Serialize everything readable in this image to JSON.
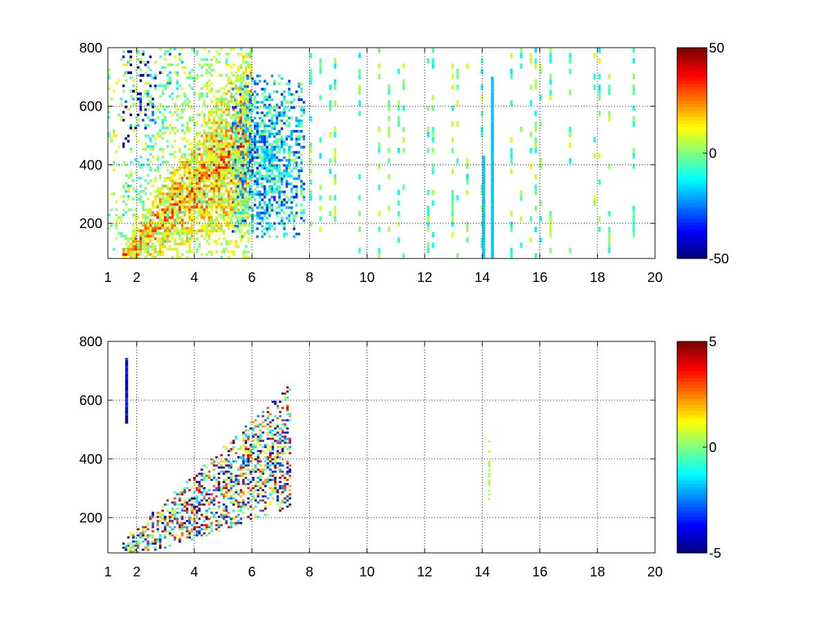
{
  "chart_data": [
    {
      "type": "heatmap",
      "title": "",
      "xlabel": "",
      "ylabel": "",
      "xlim": [
        1,
        20
      ],
      "ylim": [
        80,
        800
      ],
      "grid": true,
      "colormap": "jet",
      "xticks": [
        1,
        2,
        4,
        6,
        8,
        10,
        12,
        14,
        16,
        18,
        20
      ],
      "yticks": [
        200,
        400,
        600,
        800
      ],
      "colorbar": {
        "range": [
          -50,
          50
        ],
        "ticks": [
          -50,
          0,
          50
        ],
        "placement": "right"
      },
      "features": [
        {
          "kind": "diagonal-band",
          "description": "dense positive values rising from x≈1.5,y≈80 to x≈6,y≈650",
          "value_range": [
            0,
            40
          ]
        },
        {
          "kind": "cluster",
          "x_range": [
            5.3,
            7.8
          ],
          "y_range": [
            150,
            700
          ],
          "value_range": [
            -35,
            5
          ]
        },
        {
          "kind": "sparse-columns",
          "x_range": [
            8,
            20
          ],
          "value_range": [
            -15,
            10
          ]
        },
        {
          "kind": "stripe",
          "x": 14.0,
          "y_range": [
            80,
            430
          ],
          "value": -18
        },
        {
          "kind": "stripe",
          "x": 14.3,
          "y_range": [
            80,
            700
          ],
          "value": -18
        }
      ]
    },
    {
      "type": "heatmap",
      "title": "",
      "xlabel": "",
      "ylabel": "",
      "xlim": [
        1,
        20
      ],
      "ylim": [
        80,
        800
      ],
      "grid": true,
      "colormap": "jet",
      "xticks": [
        1,
        2,
        4,
        6,
        8,
        10,
        12,
        14,
        16,
        18,
        20
      ],
      "yticks": [
        200,
        400,
        600,
        800
      ],
      "colorbar": {
        "range": [
          -5,
          5
        ],
        "ticks": [
          -5,
          0,
          5
        ],
        "placement": "right"
      },
      "features": [
        {
          "kind": "diagonal-band",
          "description": "scattered mixed values from x≈1.5,y≈80 to x≈7.3,y≈560",
          "value_range": [
            -5,
            5
          ]
        },
        {
          "kind": "stripe",
          "x": 1.6,
          "y_range": [
            520,
            740
          ],
          "value": -4
        },
        {
          "kind": "patch",
          "x": 14.2,
          "y_range": [
            260,
            460
          ],
          "value": 0.5
        }
      ]
    }
  ]
}
